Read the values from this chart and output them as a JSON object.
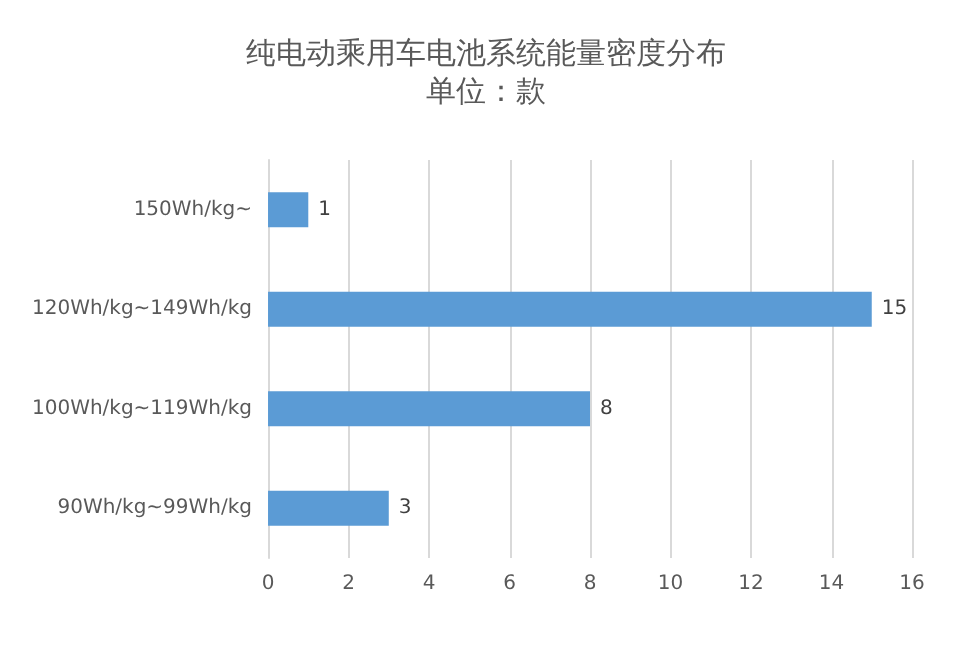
{
  "chart_data": {
    "type": "bar",
    "orientation": "horizontal",
    "title": "纯电动乘用车电池系统能量密度分布",
    "subtitle": "单位：款",
    "categories": [
      "150Wh/kg~",
      "120Wh/kg~149Wh/kg",
      "100Wh/kg~119Wh/kg",
      "90Wh/kg~99Wh/kg"
    ],
    "values": [
      1,
      15,
      8,
      3
    ],
    "color": "#5b9bd5",
    "data_labels": true,
    "xlim": [
      0,
      16
    ],
    "xticks": [
      0,
      2,
      4,
      6,
      8,
      10,
      12,
      14,
      16
    ],
    "grid": "x"
  }
}
